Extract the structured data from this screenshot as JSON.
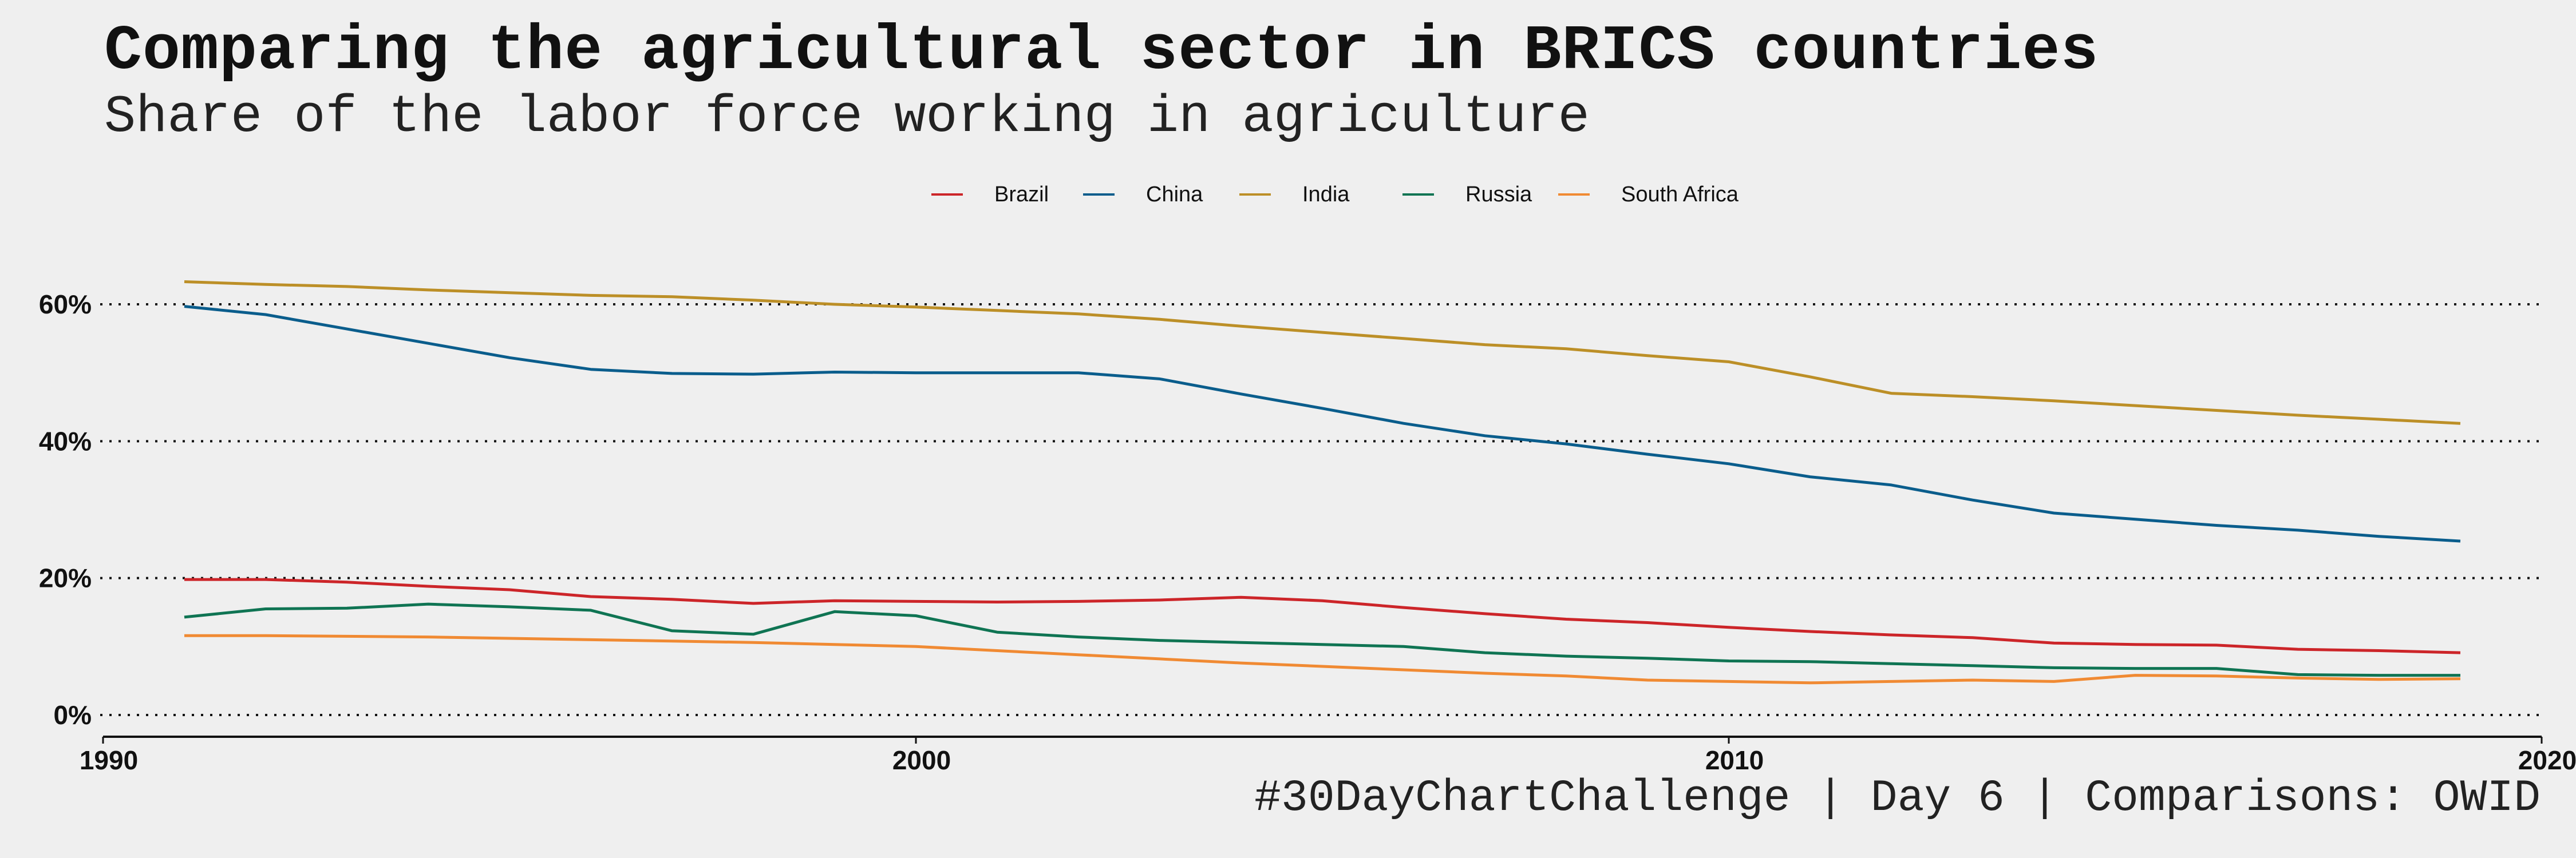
{
  "header": {
    "title": "Comparing the agricultural sector in BRICS countries",
    "subtitle": "Share of the labor force working in agriculture"
  },
  "footer": {
    "caption": "#30DayChartChallenge | Day 6 | Comparisons: OWID"
  },
  "chart_data": {
    "type": "line",
    "title": "Comparing the agricultural sector in BRICS countries",
    "subtitle": "Share of the labor force working in agriculture",
    "xlabel": "",
    "ylabel": "",
    "xlim": [
      1990,
      2020
    ],
    "ylim": [
      0,
      65
    ],
    "x_ticks": [
      1990,
      2000,
      2010,
      2020
    ],
    "y_ticks": [
      0,
      20,
      40,
      60
    ],
    "y_tick_labels": [
      "0%",
      "20%",
      "40%",
      "60%"
    ],
    "grid": "horizontal dotted",
    "legend_position": "top-center",
    "x": [
      1991,
      1992,
      1993,
      1994,
      1995,
      1996,
      1997,
      1998,
      1999,
      2000,
      2001,
      2002,
      2003,
      2004,
      2005,
      2006,
      2007,
      2008,
      2009,
      2010,
      2011,
      2012,
      2013,
      2014,
      2015,
      2016,
      2017,
      2018,
      2019
    ],
    "series": [
      {
        "name": "Brazil",
        "color": "#cc2529",
        "values": [
          19.8,
          19.8,
          19.4,
          18.8,
          18.3,
          17.3,
          16.9,
          16.3,
          16.7,
          16.6,
          16.5,
          16.6,
          16.8,
          17.2,
          16.7,
          15.7,
          14.8,
          14.0,
          13.5,
          12.8,
          12.2,
          11.7,
          11.3,
          10.5,
          10.3,
          10.2,
          9.6,
          9.4,
          9.1
        ]
      },
      {
        "name": "China",
        "color": "#0a5d8c",
        "values": [
          59.7,
          58.5,
          56.4,
          54.3,
          52.2,
          50.5,
          49.9,
          49.8,
          50.1,
          50.0,
          50.0,
          50.0,
          49.1,
          46.9,
          44.8,
          42.6,
          40.8,
          39.6,
          38.1,
          36.7,
          34.8,
          33.6,
          31.4,
          29.5,
          28.6,
          27.7,
          27.0,
          26.1,
          25.4
        ]
      },
      {
        "name": "India",
        "color": "#bc8f27",
        "values": [
          63.3,
          62.9,
          62.6,
          62.1,
          61.7,
          61.3,
          61.1,
          60.6,
          60.0,
          59.6,
          59.1,
          58.6,
          57.8,
          56.8,
          55.9,
          55.0,
          54.1,
          53.5,
          52.5,
          51.6,
          49.4,
          47.0,
          46.5,
          45.9,
          45.2,
          44.5,
          43.8,
          43.2,
          42.6
        ]
      },
      {
        "name": "Russia",
        "color": "#0f7453",
        "values": [
          14.3,
          15.5,
          15.6,
          16.2,
          15.8,
          15.3,
          12.3,
          11.8,
          15.1,
          14.5,
          12.1,
          11.4,
          10.9,
          10.6,
          10.3,
          10.0,
          9.1,
          8.6,
          8.3,
          7.9,
          7.8,
          7.5,
          7.2,
          6.9,
          6.8,
          6.8,
          5.9,
          5.8,
          5.8
        ]
      },
      {
        "name": "South Africa",
        "color": "#f08a33",
        "values": [
          11.6,
          11.6,
          11.5,
          11.4,
          11.2,
          11.0,
          10.8,
          10.6,
          10.3,
          10.0,
          9.4,
          8.8,
          8.2,
          7.6,
          7.1,
          6.6,
          6.1,
          5.7,
          5.1,
          4.9,
          4.7,
          4.9,
          5.1,
          4.9,
          5.8,
          5.7,
          5.4,
          5.2,
          5.3
        ]
      }
    ]
  }
}
